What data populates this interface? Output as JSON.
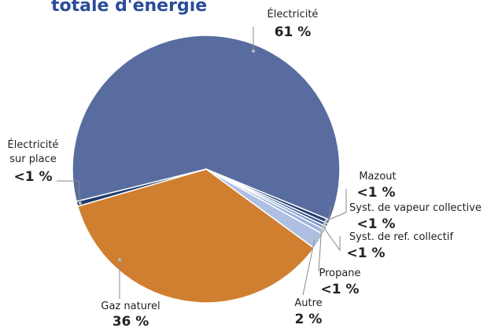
{
  "chart_data": {
    "type": "pie",
    "title": "totale d'énergie",
    "categories": [
      "Électricité",
      "Mazout",
      "Syst. de vapeur collective",
      "Syst. de ref. collectif",
      "Propane",
      "Autre",
      "Gaz naturel",
      "Électricité sur place"
    ],
    "values": [
      61,
      0.5,
      0.4,
      0.4,
      0.6,
      2,
      36,
      0.6
    ],
    "value_labels": [
      "61 %",
      "<1 %",
      "<1 %",
      "<1 %",
      "<1 %",
      "2 %",
      "36 %",
      "<1 %"
    ],
    "colors": [
      "#596c9f",
      "#1f3a6e",
      "#2f4f8a",
      "#7390c6",
      "#9fb4dc",
      "#aebfe2",
      "#d07f30",
      "#1f3a6e"
    ]
  }
}
